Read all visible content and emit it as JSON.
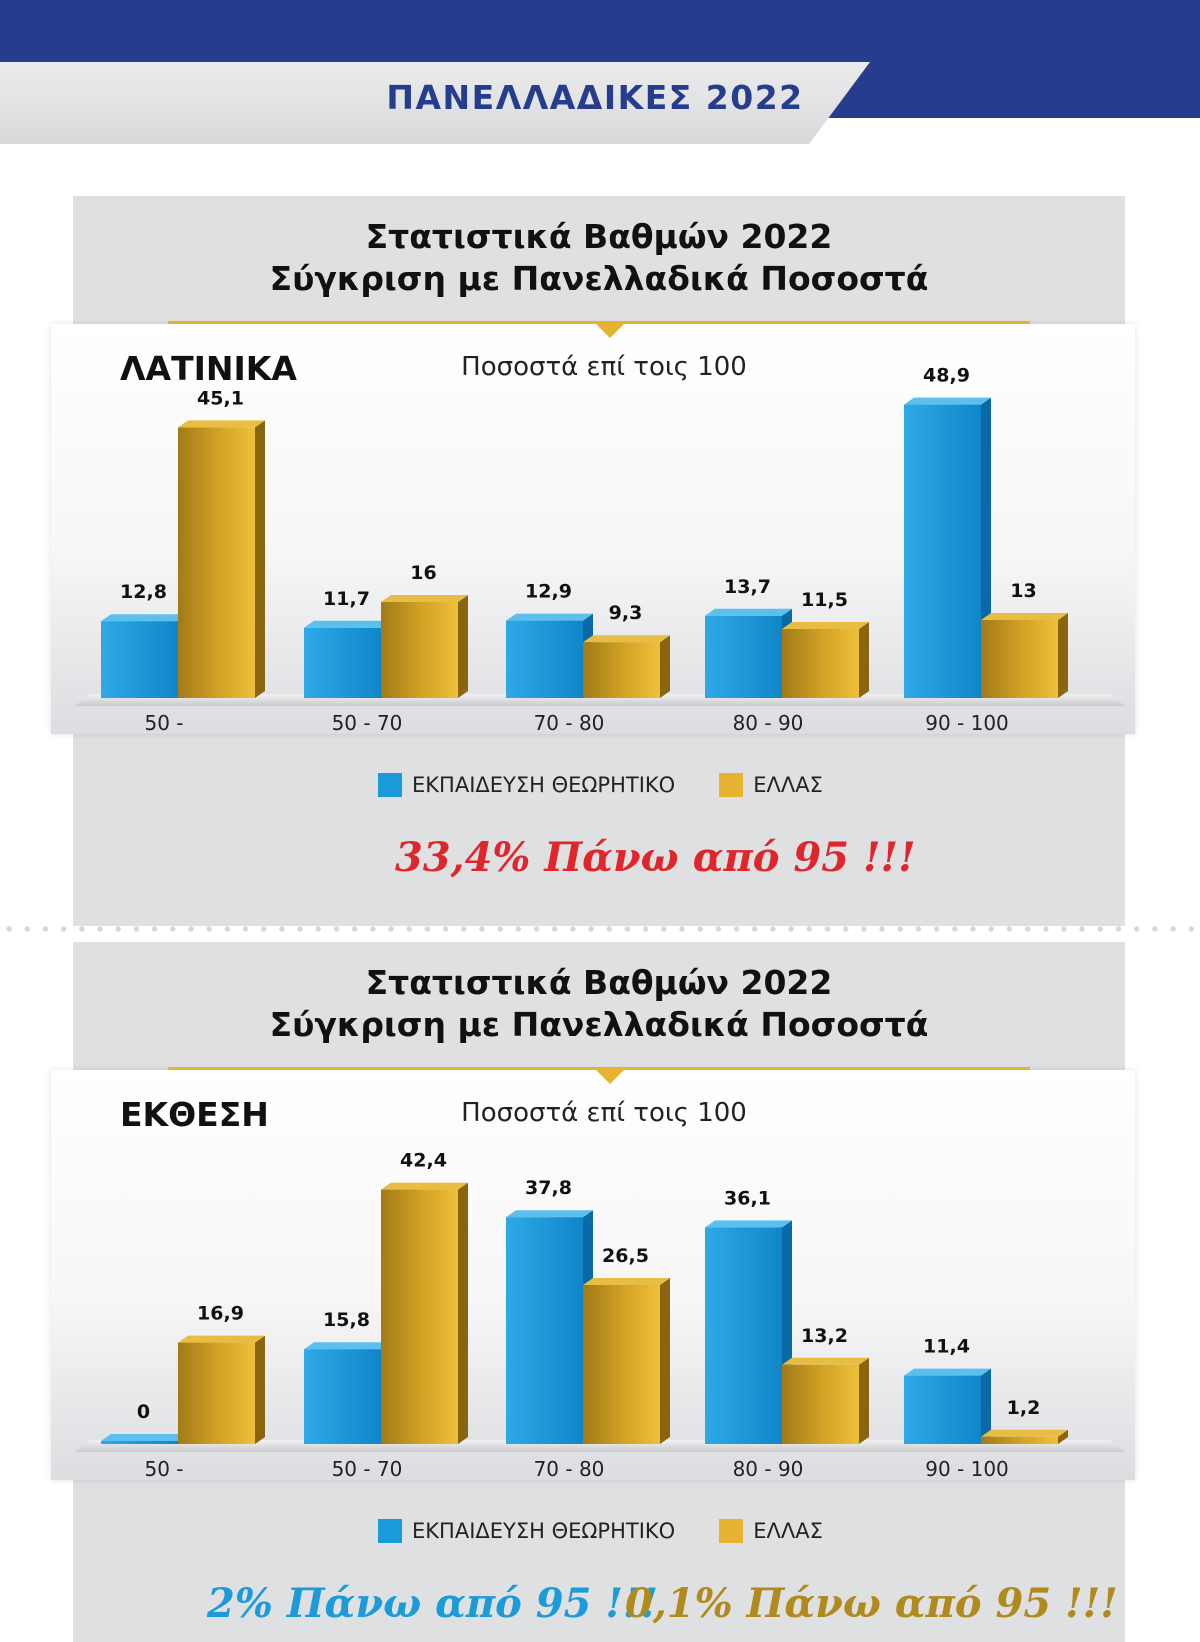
{
  "header": {
    "title": "ΠΑΝΕΛΛΑΔΙΚΕΣ 2022"
  },
  "colors": {
    "series_a": "#1a9ad9",
    "series_b": "#d3a425",
    "navy": "#253d8c",
    "note_red": "#e0262d",
    "note_blue": "#1c9bd9",
    "note_gold": "#b08a1d"
  },
  "sections": [
    {
      "title_line1": "Στατιστικά Βαθμών 2022",
      "title_line2": "Σύγκριση με Πανελλαδικά Ποσοστά",
      "subject": "ΛΑΤΙΝΙΚΑ",
      "subtitle": "Ποσοστά επί τοις 100",
      "legend": [
        "ΕΚΠΑΙΔΕΥΣΗ ΘΕΩΡΗΤΙΚΟ",
        "ΕΛΛΑΣ"
      ],
      "notes": [
        {
          "text": "33,4% Πάνω από 95 !!!",
          "color": "#e0262d"
        }
      ]
    },
    {
      "title_line1": "Στατιστικά Βαθμών 2022",
      "title_line2": "Σύγκριση με Πανελλαδικά Ποσοστά",
      "subject": "ΕΚΘΕΣΗ",
      "subtitle": "Ποσοστά επί τοις 100",
      "legend": [
        "ΕΚΠΑΙΔΕΥΣΗ ΘΕΩΡΗΤΙΚΟ",
        "ΕΛΛΑΣ"
      ],
      "notes": [
        {
          "text": "2% Πάνω από 95 !!!",
          "color": "#1c9bd9"
        },
        {
          "text": "0,1% Πάνω από 95 !!!",
          "color": "#b08a1d"
        }
      ]
    }
  ],
  "chart_data": [
    {
      "type": "bar",
      "title": "ΛΑΤΙΝΙΚΑ",
      "subtitle": "Ποσοστά επί τοις 100",
      "categories": [
        "50 -",
        "50 - 70",
        "70 - 80",
        "80 - 90",
        "90 - 100"
      ],
      "series": [
        {
          "name": "ΕΚΠΑΙΔΕΥΣΗ ΘΕΩΡΗΤΙΚΟ",
          "values": [
            12.8,
            11.7,
            12.9,
            13.7,
            48.9
          ],
          "labels": [
            "12,8",
            "11,7",
            "12,9",
            "13,7",
            "48,9"
          ]
        },
        {
          "name": "ΕΛΛΑΣ",
          "values": [
            45.1,
            16,
            9.3,
            11.5,
            13
          ],
          "labels": [
            "45,1",
            "16",
            "9,3",
            "11,5",
            "13"
          ]
        }
      ],
      "ylim": [
        0,
        50
      ],
      "legend": "bottom"
    },
    {
      "type": "bar",
      "title": "ΕΚΘΕΣΗ",
      "subtitle": "Ποσοστά επί τοις 100",
      "categories": [
        "50 -",
        "50 - 70",
        "70 - 80",
        "80 - 90",
        "90 - 100"
      ],
      "series": [
        {
          "name": "ΕΚΠΑΙΔΕΥΣΗ ΘΕΩΡΗΤΙΚΟ",
          "values": [
            0,
            15.8,
            37.8,
            36.1,
            11.4
          ],
          "labels": [
            "0",
            "15,8",
            "37,8",
            "36,1",
            "11,4"
          ]
        },
        {
          "name": "ΕΛΛΑΣ",
          "values": [
            16.9,
            42.4,
            26.5,
            13.2,
            1.2
          ],
          "labels": [
            "16,9",
            "42,4",
            "26,5",
            "13,2",
            "1,2"
          ]
        }
      ],
      "ylim": [
        0,
        50
      ],
      "legend": "bottom"
    }
  ]
}
